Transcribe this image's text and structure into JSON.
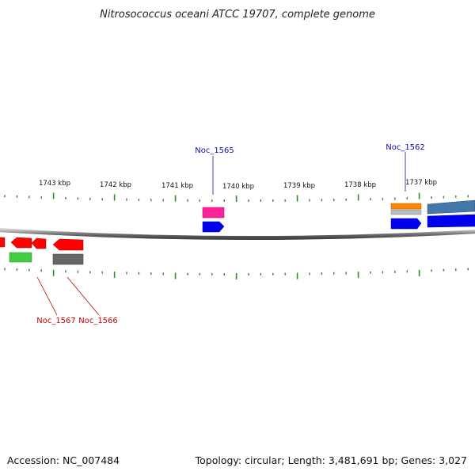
{
  "title": "Nitrosococcus oceani ATCC 19707, complete genome",
  "footer": {
    "accession": "Accession: NC_007484",
    "summary": "Topology: circular; Length: 3,481,691 bp; Genes: 3,027"
  },
  "scale_labels": [
    "1743 kbp",
    "1742 kbp",
    "1741 kbp",
    "1740 kbp",
    "1739 kbp",
    "1738 kbp",
    "1737 kbp"
  ],
  "gene_labels": [
    {
      "id": "noc1565",
      "text": "Noc_1565",
      "color": "#1111aa"
    },
    {
      "id": "noc1562",
      "text": "Noc_1562",
      "color": "#1111aa"
    },
    {
      "id": "noc1567",
      "text": "Noc_1567",
      "color": "#cc0000"
    },
    {
      "id": "noc1566",
      "text": "Noc_1566",
      "color": "#cc0000"
    }
  ],
  "colors": {
    "backbone": "#777777",
    "tick": "#2e8b2e",
    "red": "#ff0000",
    "green": "#44cc44",
    "gray": "#666666",
    "pink": "#ff2299",
    "blue": "#0000ee",
    "orange": "#ff8800",
    "steel": "#4477aa",
    "silver": "#bbbbbb"
  }
}
